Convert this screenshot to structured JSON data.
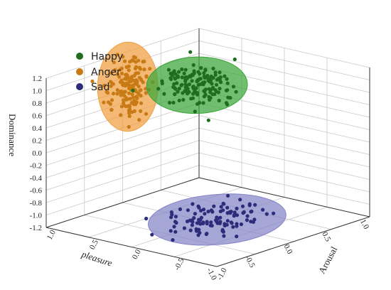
{
  "chart_data": {
    "type": "scatter",
    "projection": "3d",
    "axes": {
      "x": {
        "label": "pleasure",
        "range": [
          -1.0,
          1.0
        ],
        "ticks": [
          "-1.0",
          "-0.5",
          "0.0",
          "0.5",
          "1.0"
        ]
      },
      "y": {
        "label": "Arousal",
        "range": [
          -1.0,
          1.0
        ],
        "ticks": [
          "-1.0",
          "-0.5",
          "0.0",
          "0.5",
          "1.0"
        ]
      },
      "z": {
        "label": "Dominance",
        "range": [
          -1.2,
          1.2
        ],
        "ticks": [
          "1.2",
          "1.0",
          "0.8",
          "0.6",
          "0.4",
          "0.2",
          "0.0",
          "-0.2",
          "-0.4",
          "-0.6",
          "-0.8",
          "-1.0",
          "-1.2"
        ]
      }
    },
    "grid": true,
    "legend_position": "top-left",
    "series": [
      {
        "name": "Happy",
        "color": "#1f6e1f",
        "ellipse_color": "#3aa53a",
        "center": [
          0.75,
          0.8,
          0.45
        ],
        "spread": [
          0.2,
          0.2,
          0.18
        ]
      },
      {
        "name": "Anger",
        "color": "#c87a14",
        "ellipse_color": "#f0a040",
        "center": [
          -0.1,
          0.85,
          0.75
        ],
        "spread": [
          0.12,
          0.12,
          0.32
        ]
      },
      {
        "name": "Sad",
        "color": "#2c2c7a",
        "ellipse_color": "#8484c8",
        "center": [
          -0.55,
          -0.6,
          -0.75
        ],
        "spread": [
          0.3,
          0.25,
          0.12
        ]
      }
    ]
  }
}
